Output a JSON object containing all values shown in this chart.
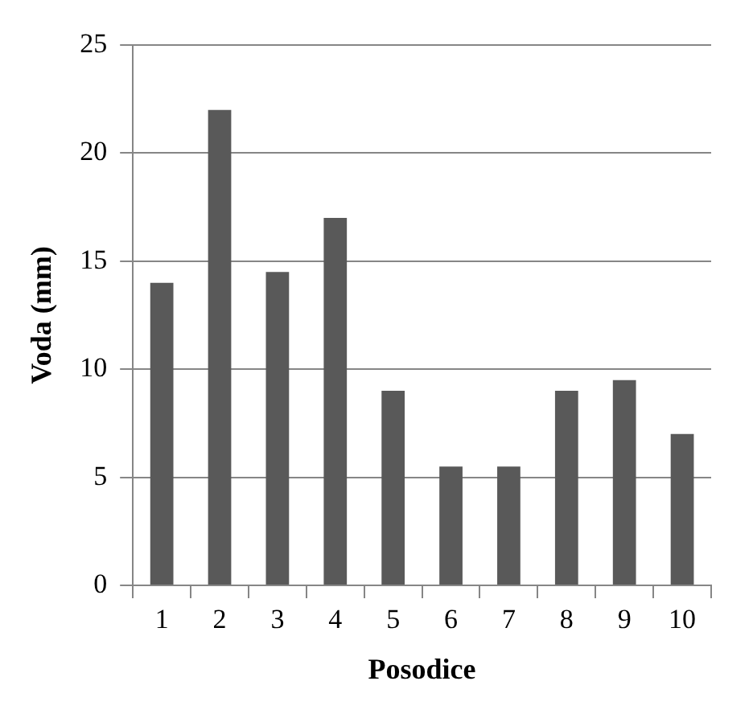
{
  "chart_data": {
    "type": "bar",
    "xlabel": "Posodice",
    "ylabel": "Voda (mm)",
    "categories": [
      "1",
      "2",
      "3",
      "4",
      "5",
      "6",
      "7",
      "8",
      "9",
      "10"
    ],
    "values": [
      14,
      22,
      14.5,
      17,
      9,
      5.5,
      5.5,
      9,
      9.5,
      7
    ],
    "color": "#595959",
    "ylim": [
      0,
      25
    ],
    "yticks": [
      0,
      5,
      10,
      15,
      20,
      25
    ],
    "grid": "y"
  }
}
